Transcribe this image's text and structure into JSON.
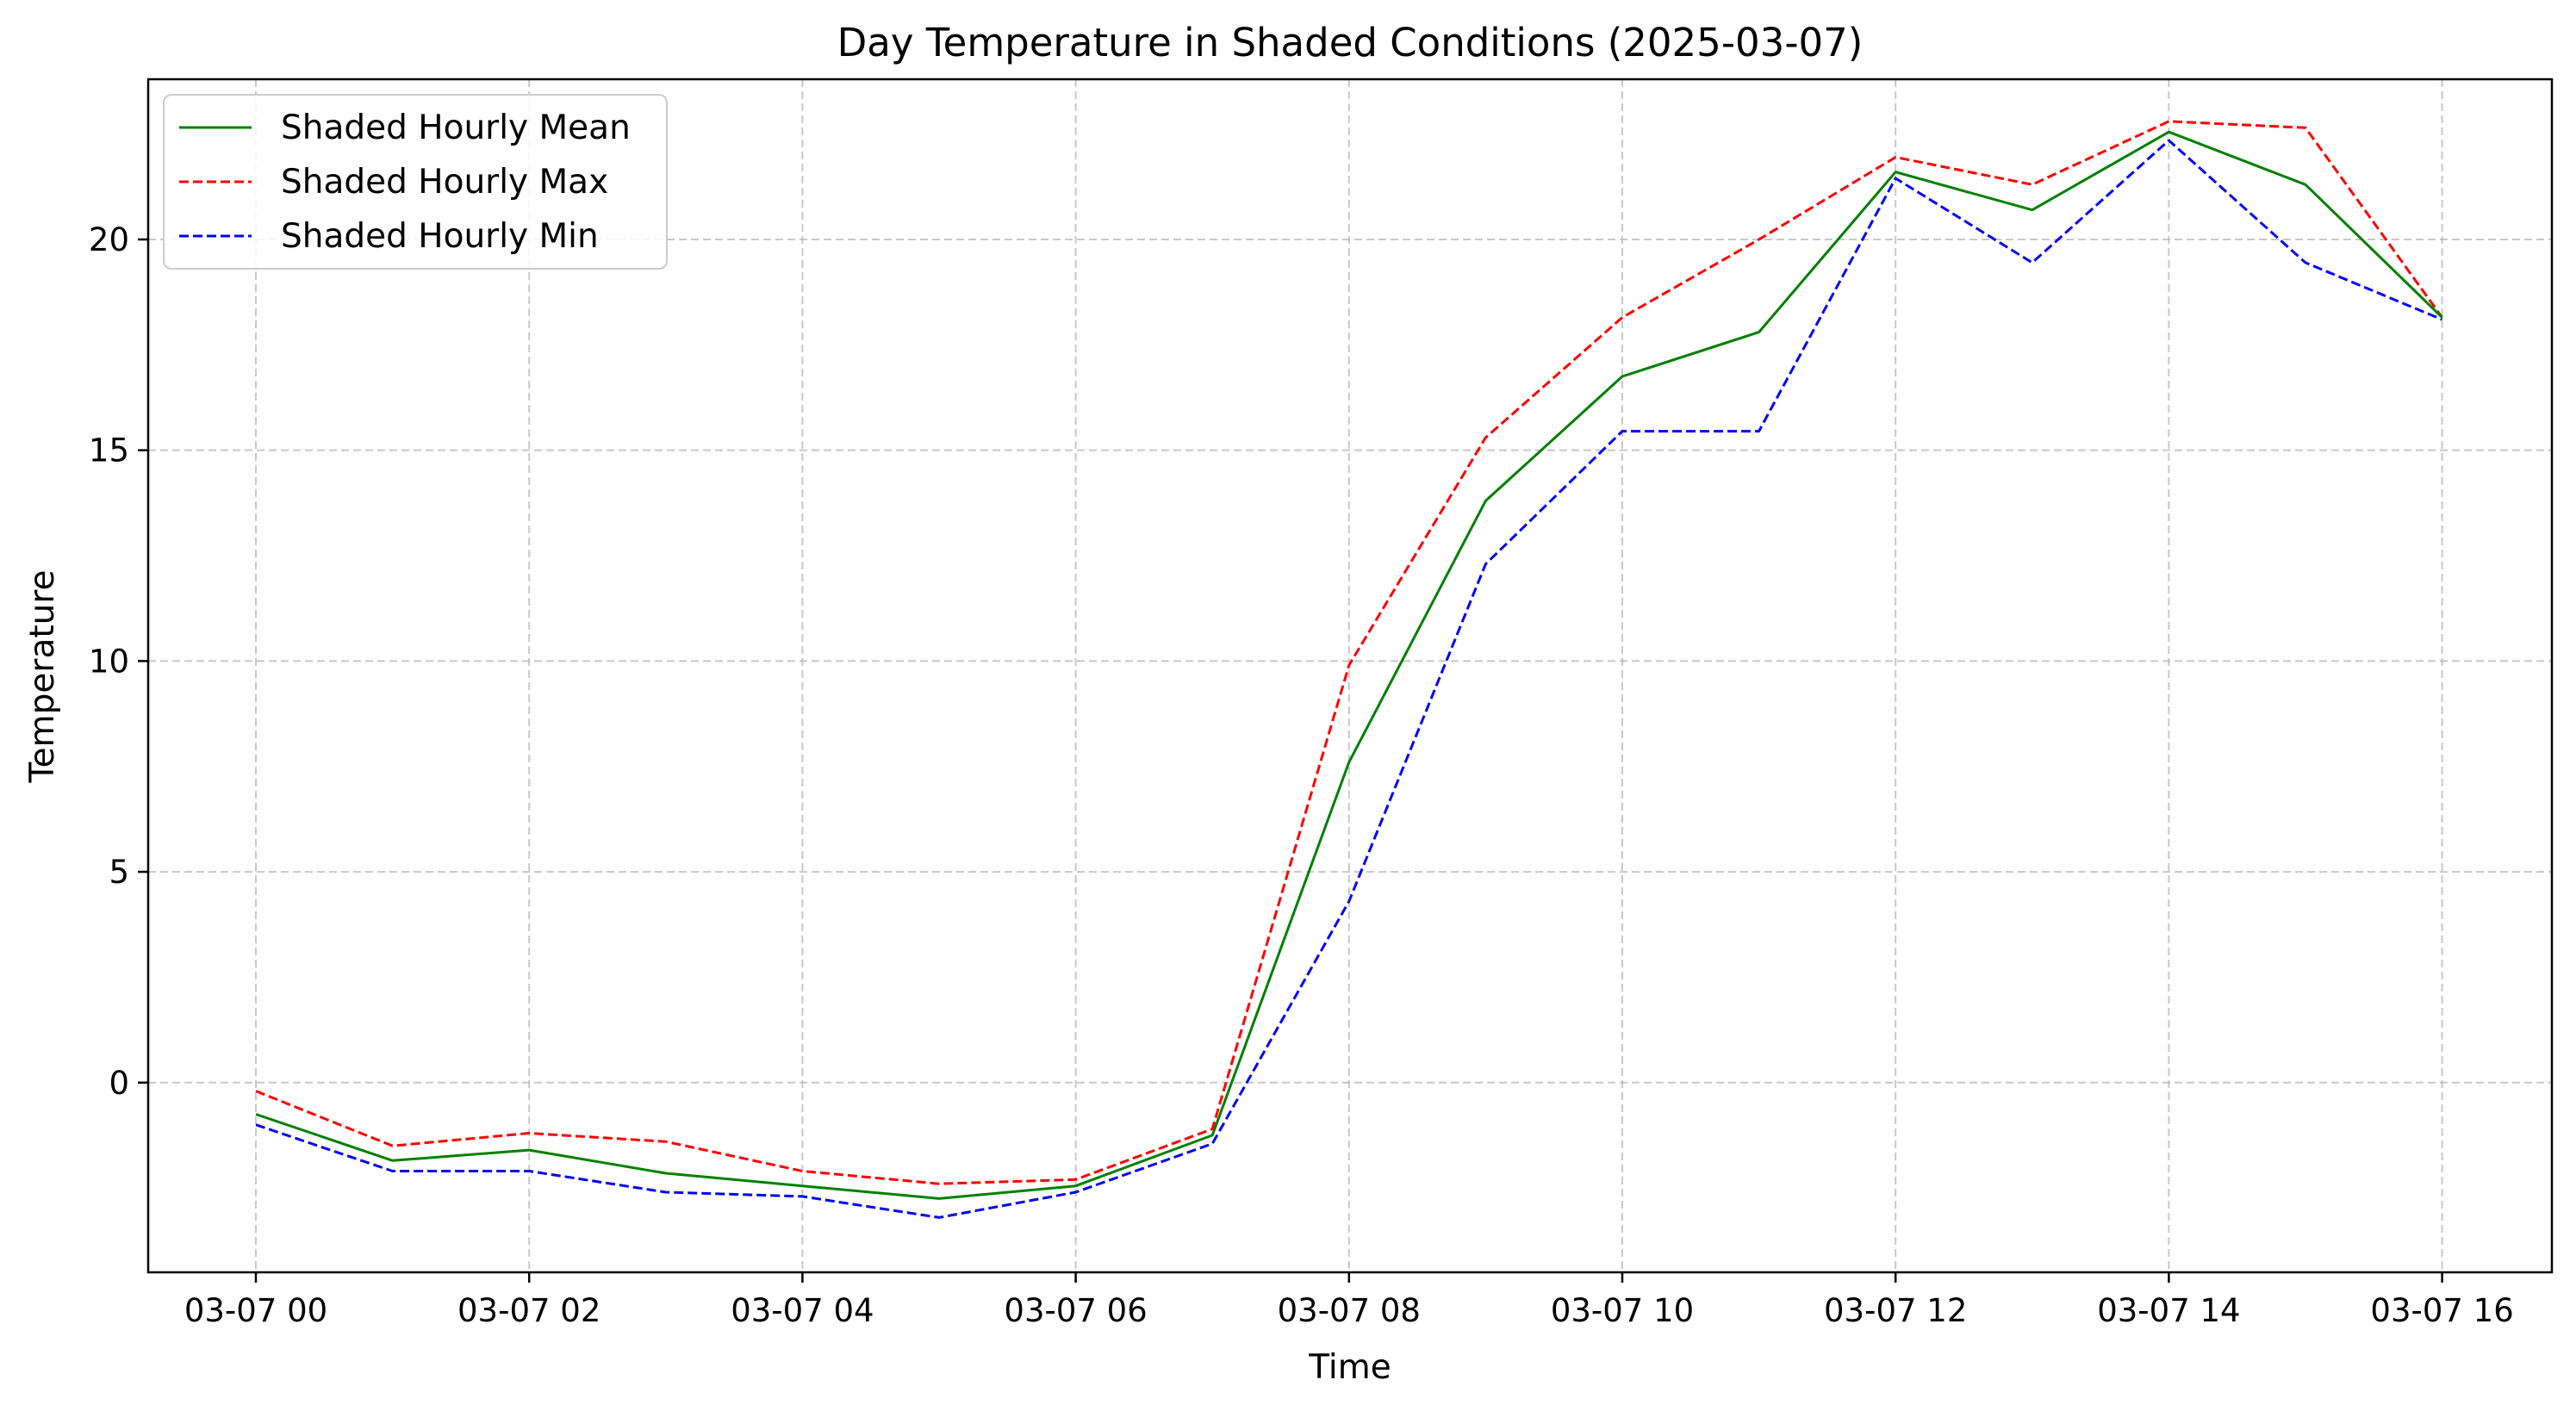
{
  "chart_data": {
    "type": "line",
    "title": "Day Temperature in Shaded Conditions (2025-03-07)",
    "xlabel": "Time",
    "ylabel": "Temperature",
    "x": [
      "03-07 00",
      "03-07 01",
      "03-07 02",
      "03-07 03",
      "03-07 04",
      "03-07 05",
      "03-07 06",
      "03-07 07",
      "03-07 08",
      "03-07 09",
      "03-07 10",
      "03-07 11",
      "03-07 12",
      "03-07 13",
      "03-07 14",
      "03-07 15",
      "03-07 16"
    ],
    "x_ticks": [
      "03-07 00",
      "03-07 02",
      "03-07 04",
      "03-07 06",
      "03-07 08",
      "03-07 10",
      "03-07 12",
      "03-07 14",
      "03-07 16"
    ],
    "xlim": [
      "2025-03-06 23:13",
      "2025-03-07 16:47"
    ],
    "ylim": [
      -4.5,
      23.8
    ],
    "y_ticks": [
      0,
      5,
      10,
      15,
      20
    ],
    "grid": true,
    "legend": "top-left",
    "series": [
      {
        "name": "Shaded Hourly Mean",
        "color": "#008000",
        "style": "solid",
        "values": [
          -0.75,
          -1.85,
          -1.6,
          -2.15,
          -2.45,
          -2.75,
          -2.45,
          -1.25,
          7.6,
          13.8,
          16.75,
          17.8,
          21.6,
          20.7,
          22.55,
          21.3,
          18.15
        ]
      },
      {
        "name": "Shaded Hourly Max",
        "color": "#ff0000",
        "style": "dashed",
        "values": [
          -0.2,
          -1.5,
          -1.2,
          -1.4,
          -2.1,
          -2.4,
          -2.3,
          -1.1,
          9.9,
          15.3,
          18.15,
          20.0,
          21.95,
          21.3,
          22.8,
          22.65,
          18.15
        ]
      },
      {
        "name": "Shaded Hourly Min",
        "color": "#0000ff",
        "style": "dashed",
        "values": [
          -1.0,
          -2.1,
          -2.1,
          -2.6,
          -2.7,
          -3.2,
          -2.6,
          -1.45,
          4.3,
          12.3,
          15.45,
          15.45,
          21.45,
          19.45,
          22.35,
          19.45,
          18.1
        ]
      }
    ]
  }
}
